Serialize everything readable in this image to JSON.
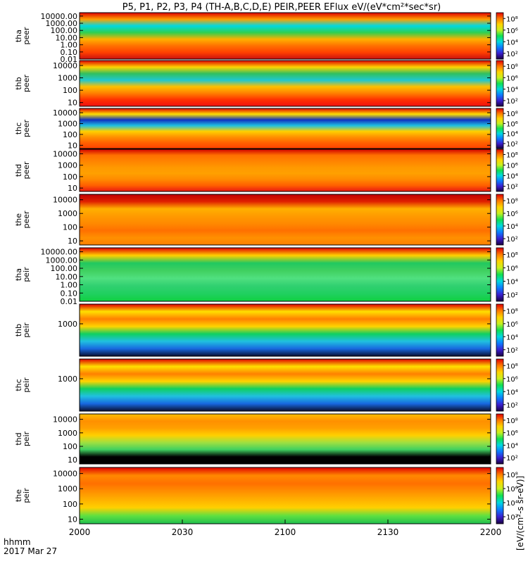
{
  "title": "P5, P1, P2, P3, P4 (TH-A,B,C,D,E) PEIR,PEER EFlux eV/(eV*cm²*sec*sr)",
  "time_axis": {
    "label_line1": "hhmm",
    "label_line2": "2017 Mar 27",
    "ticks": [
      "2000",
      "2030",
      "2100",
      "2130",
      "2200"
    ],
    "range_minutes": [
      0,
      120
    ]
  },
  "colorbar": {
    "tick_labels": [
      "10⁸",
      "10⁶",
      "10⁴",
      "10²"
    ],
    "exponents": [
      8,
      6,
      4,
      2
    ],
    "range_exp": [
      1,
      9
    ],
    "unit_label": "[eV/(cm²-s sr-eV)]",
    "colors": [
      "#1a0040",
      "#3a1fd0",
      "#0c7cff",
      "#00d8e0",
      "#10e050",
      "#c8f020",
      "#ffd400",
      "#ff7a00",
      "#e00000"
    ]
  },
  "chart_data": [
    {
      "type": "heatmap",
      "ylabel": "tha\npeer",
      "yscale": "log",
      "ylim": [
        0.01,
        30000
      ],
      "ytick_labels": [
        "10000.00",
        "1000.00",
        "100.00",
        "10.00",
        "1.00",
        "0.10",
        "0.01"
      ],
      "ytick_values": [
        10000,
        1000,
        100,
        10,
        1,
        0.1,
        0.01
      ]
    },
    {
      "type": "heatmap",
      "ylabel": "thb\npeer",
      "yscale": "log",
      "ylim": [
        5,
        25000
      ],
      "ytick_labels": [
        "10000",
        "1000",
        "100",
        "10"
      ],
      "ytick_values": [
        10000,
        1000,
        100,
        10
      ]
    },
    {
      "type": "heatmap",
      "ylabel": "thc\npeer",
      "yscale": "log",
      "ylim": [
        5,
        25000
      ],
      "ytick_labels": [
        "10000",
        "1000",
        "100",
        "10"
      ],
      "ytick_values": [
        10000,
        1000,
        100,
        10
      ]
    },
    {
      "type": "heatmap",
      "ylabel": "thd\npeer",
      "yscale": "log",
      "ylim": [
        5,
        25000
      ],
      "ytick_labels": [
        "10000",
        "1000",
        "100",
        "10"
      ],
      "ytick_values": [
        10000,
        1000,
        100,
        10
      ]
    },
    {
      "type": "heatmap",
      "ylabel": "the\npeer",
      "yscale": "log",
      "ylim": [
        5,
        25000
      ],
      "ytick_labels": [
        "10000",
        "1000",
        "100",
        "10"
      ],
      "ytick_values": [
        10000,
        1000,
        100,
        10
      ]
    },
    {
      "type": "heatmap",
      "ylabel": "tha\npeir",
      "yscale": "log",
      "ylim": [
        0.01,
        30000
      ],
      "ytick_labels": [
        "10000.00",
        "1000.00",
        "100.00",
        "10.00",
        "1.00",
        "0.10",
        "0.01"
      ],
      "ytick_values": [
        10000,
        1000,
        100,
        10,
        1,
        0.1,
        0.01
      ]
    },
    {
      "type": "heatmap",
      "ylabel": "thb\npeir",
      "yscale": "log",
      "ylim": [
        5,
        25000
      ],
      "ytick_labels": [
        "1000"
      ],
      "ytick_values": [
        1000
      ]
    },
    {
      "type": "heatmap",
      "ylabel": "thc\npeir",
      "yscale": "log",
      "ylim": [
        5,
        25000
      ],
      "ytick_labels": [
        "1000"
      ],
      "ytick_values": [
        1000
      ]
    },
    {
      "type": "heatmap",
      "ylabel": "thd\npeir",
      "yscale": "log",
      "ylim": [
        5,
        25000
      ],
      "ytick_labels": [
        "10000",
        "1000",
        "100",
        "10"
      ],
      "ytick_values": [
        10000,
        1000,
        100,
        10
      ]
    },
    {
      "type": "heatmap",
      "ylabel": "the\npeir",
      "yscale": "log",
      "ylim": [
        5,
        25000
      ],
      "ytick_labels": [
        "10000",
        "1000",
        "100",
        "10"
      ],
      "ytick_values": [
        10000,
        1000,
        100,
        10
      ]
    }
  ]
}
